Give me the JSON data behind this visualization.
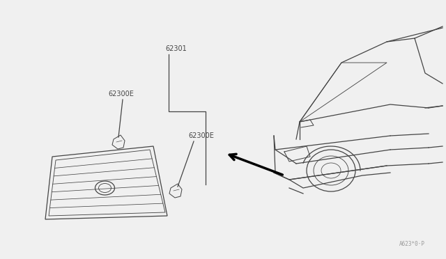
{
  "bg_color": "#f0f0f0",
  "line_color": "#444444",
  "label_color": "#444444",
  "watermark": "A623*0·P",
  "fig_w": 6.4,
  "fig_h": 3.72,
  "dpi": 100
}
